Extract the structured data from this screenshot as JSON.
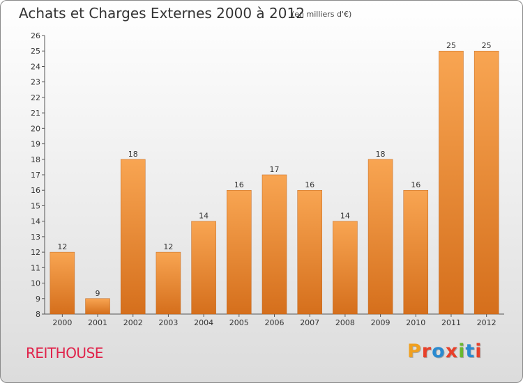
{
  "header": {
    "title": "Achats et Charges Externes 2000 à 2012",
    "subtitle": "(en milliers d'€)"
  },
  "footer": {
    "commune": "REITHOUSE",
    "logo_text": "Proxiti",
    "logo_colors": [
      "#f0a020",
      "#e8402a",
      "#2a8ad0",
      "#e8402a",
      "#6ab82e",
      "#2a8ad0",
      "#e8402a"
    ]
  },
  "chart_data": {
    "type": "bar",
    "categories": [
      "2000",
      "2001",
      "2002",
      "2003",
      "2004",
      "2005",
      "2006",
      "2007",
      "2008",
      "2009",
      "2010",
      "2011",
      "2012"
    ],
    "values": [
      12,
      9,
      18,
      12,
      14,
      16,
      17,
      16,
      14,
      18,
      16,
      25,
      25
    ],
    "data_labels": [
      "12",
      "9",
      "18",
      "12",
      "14",
      "16",
      "17",
      "16",
      "14",
      "18",
      "16",
      "25",
      "25"
    ],
    "ylim": [
      8,
      26
    ],
    "yticks": [
      "8",
      "9",
      "10",
      "11",
      "12",
      "13",
      "14",
      "15",
      "16",
      "17",
      "18",
      "19",
      "20",
      "21",
      "22",
      "23",
      "24",
      "25",
      "26"
    ],
    "xlabel": "",
    "ylabel": "",
    "grid": false,
    "bar_color_light": "#f8a552",
    "bar_color_dark": "#d56f1c"
  }
}
